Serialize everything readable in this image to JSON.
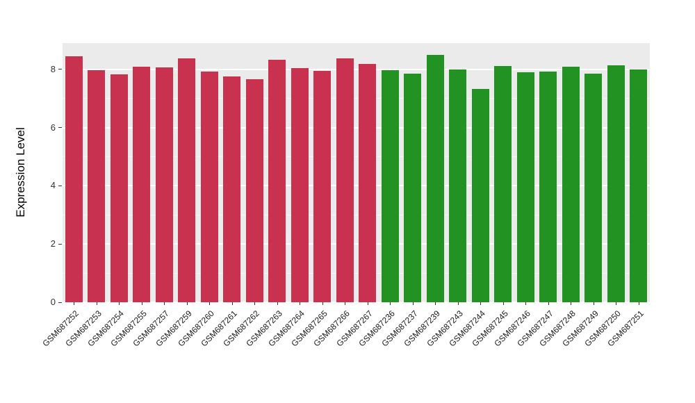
{
  "figure": {
    "background": "#FFFFFF",
    "panel_background": "#EBEBEB",
    "grid_color": "#FFFFFF",
    "tick_color": "#333333",
    "text_color": "#1A1A1A"
  },
  "chart_data": {
    "type": "bar",
    "title": "",
    "xlabel": "",
    "ylabel": "Expression Level",
    "ylim": [
      0,
      8.9
    ],
    "yticks": [
      0,
      2,
      4,
      6,
      8
    ],
    "grid": "major-white-minor-faint",
    "legend": "none",
    "categories": [
      "GSM687252",
      "GSM687253",
      "GSM687254",
      "GSM687255",
      "GSM687257",
      "GSM687259",
      "GSM687260",
      "GSM687261",
      "GSM687262",
      "GSM687263",
      "GSM687264",
      "GSM687265",
      "GSM687266",
      "GSM687267",
      "GSM687236",
      "GSM687237",
      "GSM687239",
      "GSM687243",
      "GSM687244",
      "GSM687245",
      "GSM687246",
      "GSM687247",
      "GSM687248",
      "GSM687249",
      "GSM687250",
      "GSM687251"
    ],
    "values": [
      8.45,
      7.97,
      7.82,
      8.1,
      8.07,
      8.37,
      7.92,
      7.75,
      7.66,
      8.32,
      8.04,
      7.94,
      8.38,
      8.18,
      7.97,
      7.84,
      8.5,
      8.0,
      7.33,
      8.12,
      7.9,
      7.91,
      8.09,
      7.84,
      8.13,
      8.0
    ],
    "groups": [
      "group1",
      "group1",
      "group1",
      "group1",
      "group1",
      "group1",
      "group1",
      "group1",
      "group1",
      "group1",
      "group1",
      "group1",
      "group1",
      "group1",
      "group2",
      "group2",
      "group2",
      "group2",
      "group2",
      "group2",
      "group2",
      "group2",
      "group2",
      "group2",
      "group2",
      "group2"
    ],
    "group_colors": {
      "group1": "#C8324E",
      "group2": "#229322"
    }
  }
}
